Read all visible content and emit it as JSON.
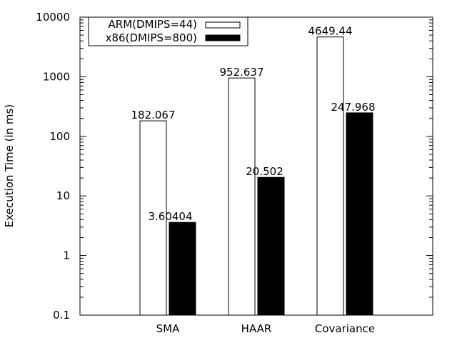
{
  "chart_data": {
    "type": "bar",
    "title": "",
    "xlabel": "",
    "ylabel": "Execution Time (in ms)",
    "yscale": "log",
    "ylim": [
      0.1,
      10000
    ],
    "yticks": [
      "0.1",
      "1",
      "10",
      "100",
      "1000",
      "10000"
    ],
    "grid": false,
    "legend_position": "top-left",
    "categories": [
      "SMA",
      "HAAR",
      "Covariance"
    ],
    "series": [
      {
        "name": "ARM(DMIPS=44)",
        "color": "#ffffff",
        "values": [
          182.067,
          952.637,
          4649.44
        ],
        "labels": [
          "182.067",
          "952.637",
          "4649.44"
        ]
      },
      {
        "name": "x86(DMIPS=800)",
        "color": "#000000",
        "values": [
          3.60404,
          20.502,
          247.968
        ],
        "labels": [
          "3.60404",
          "20.502",
          "247.968"
        ]
      }
    ]
  }
}
